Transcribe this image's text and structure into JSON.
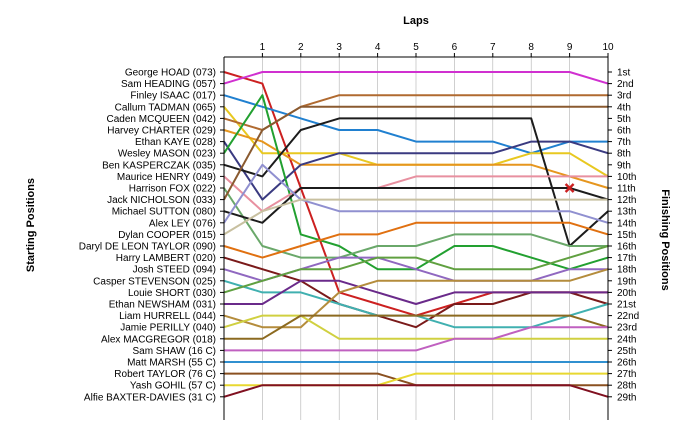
{
  "chart_data": {
    "type": "line",
    "title": "Laps",
    "ylabel_left": "Starting Positions",
    "ylabel_right": "Finishing Positions",
    "x": [
      0,
      1,
      2,
      3,
      4,
      5,
      6,
      7,
      8,
      9,
      10
    ],
    "x_ticks": [
      "1",
      "2",
      "3",
      "4",
      "5",
      "6",
      "7",
      "8",
      "9",
      "10"
    ],
    "y_reversed": true,
    "start_labels": [
      "George HOAD (073)",
      "Sam HEADING (057)",
      "Finley ISAAC (017)",
      "Callum TADMAN (065)",
      "Caden MCQUEEN (042)",
      "Harvey CHARTER (029)",
      "Ethan KAYE (028)",
      "Wesley MASON (023)",
      "Ben KASPERCZAK (035)",
      "Maurice HENRY (049)",
      "Harrison FOX (022)",
      "Jack NICHOLSON (033)",
      "Michael SUTTON (080)",
      "Alex LEY (076)",
      "Dylan COOPER (015)",
      "Daryl DE LEON TAYLOR (090)",
      "Harry LAMBERT (020)",
      "Josh STEED (094)",
      "Casper STEVENSON (025)",
      "Louie SHORT (030)",
      "Ethan NEWSHAM (031)",
      "Liam HURRELL (044)",
      "Jamie PERILLY (040)",
      "Alex MACGREGOR (018)",
      "Sam SHAW (16 C)",
      "Matt MARSH (55 C)",
      "Robert TAYLOR (76 C)",
      "Yash GOHIL (57 C)",
      "Alfie BAXTER-DAVIES (31 C)"
    ],
    "finish_labels": [
      "1st",
      "2nd",
      "3rd",
      "4th",
      "5th",
      "6th",
      "7th",
      "8th",
      "9th",
      "10th",
      "11th",
      "12th",
      "13th",
      "14th",
      "15th",
      "16th",
      "17th",
      "18th",
      "19th",
      "20th",
      "21st",
      "22nd",
      "23rd",
      "24th",
      "25th",
      "26th",
      "27th",
      "28th",
      "29th"
    ],
    "series": [
      {
        "color": "#cc2020",
        "positions": [
          1,
          2,
          11,
          20,
          21,
          22,
          21,
          20,
          20,
          20,
          20
        ]
      },
      {
        "color": "#d030d0",
        "positions": [
          2,
          1,
          1,
          1,
          1,
          1,
          1,
          1,
          1,
          1,
          2
        ]
      },
      {
        "color": "#2080d0",
        "positions": [
          3,
          4,
          5,
          6,
          6,
          7,
          7,
          7,
          8,
          7,
          7
        ]
      },
      {
        "color": "#e8c820",
        "positions": [
          4,
          8,
          8,
          8,
          9,
          9,
          9,
          9,
          8,
          8,
          10
        ]
      },
      {
        "color": "#b06a30",
        "positions": [
          5,
          6,
          4,
          3,
          3,
          3,
          3,
          3,
          3,
          3,
          3
        ]
      },
      {
        "color": "#e6961e",
        "positions": [
          6,
          7,
          9,
          9,
          9,
          9,
          9,
          9,
          9,
          10,
          11
        ]
      },
      {
        "color": "#3a3a80",
        "positions": [
          7,
          12,
          9,
          8,
          8,
          8,
          8,
          8,
          7,
          7,
          8
        ]
      },
      {
        "color": "#22a030",
        "positions": [
          8,
          3,
          15,
          16,
          18,
          18,
          16,
          16,
          17,
          18,
          17
        ]
      },
      {
        "color": "#1c1c1c",
        "positions": [
          9,
          10,
          6,
          5,
          5,
          5,
          5,
          5,
          5,
          16,
          13
        ]
      },
      {
        "color": "#e890a0",
        "positions": [
          10,
          13,
          11,
          11,
          11,
          10,
          10,
          10,
          10,
          10,
          10
        ]
      },
      {
        "color": "#6aa86a",
        "positions": [
          11,
          16,
          17,
          17,
          16,
          16,
          15,
          15,
          15,
          16,
          16
        ]
      },
      {
        "color": "#8a5a30",
        "positions": [
          12,
          6,
          4,
          4,
          4,
          4,
          4,
          4,
          4,
          4,
          4
        ]
      },
      {
        "color": "#1c1c1c",
        "positions": [
          13,
          14,
          11,
          11,
          11,
          11,
          11,
          11,
          11,
          11,
          12
        ]
      },
      {
        "color": "#9090d0",
        "positions": [
          14,
          9,
          12,
          13,
          13,
          13,
          13,
          13,
          13,
          13,
          14
        ]
      },
      {
        "color": "#c8c0a0",
        "positions": [
          15,
          13,
          12,
          12,
          12,
          12,
          12,
          12,
          12,
          12,
          12
        ]
      },
      {
        "color": "#e07010",
        "positions": [
          16,
          17,
          16,
          15,
          15,
          14,
          14,
          14,
          14,
          14,
          15
        ]
      },
      {
        "color": "#7a1a1a",
        "positions": [
          17,
          18,
          19,
          21,
          22,
          23,
          21,
          21,
          20,
          20,
          21
        ]
      },
      {
        "color": "#9068c0",
        "positions": [
          18,
          19,
          18,
          17,
          17,
          18,
          19,
          19,
          19,
          18,
          18
        ]
      },
      {
        "color": "#40b0b0",
        "positions": [
          19,
          20,
          20,
          21,
          22,
          22,
          23,
          23,
          23,
          22,
          21
        ]
      },
      {
        "color": "#60a040",
        "positions": [
          20,
          19,
          18,
          18,
          17,
          17,
          18,
          18,
          18,
          17,
          16
        ]
      },
      {
        "color": "#6a2a8a",
        "positions": [
          21,
          21,
          19,
          19,
          20,
          21,
          20,
          20,
          20,
          20,
          20
        ]
      },
      {
        "color": "#b48c3c",
        "positions": [
          22,
          23,
          23,
          20,
          19,
          19,
          19,
          19,
          19,
          19,
          18
        ]
      },
      {
        "color": "#d0d040",
        "positions": [
          23,
          22,
          22,
          24,
          24,
          24,
          24,
          24,
          24,
          24,
          24
        ]
      },
      {
        "color": "#8c6a20",
        "positions": [
          24,
          24,
          22,
          22,
          22,
          22,
          22,
          22,
          22,
          22,
          23
        ]
      },
      {
        "color": "#c060c0",
        "positions": [
          25,
          25,
          25,
          25,
          25,
          25,
          24,
          24,
          23,
          23,
          23
        ]
      },
      {
        "color": "#3090d0",
        "positions": [
          26,
          26,
          26,
          26,
          26,
          26,
          26,
          26,
          26,
          26,
          26
        ]
      },
      {
        "color": "#8a5020",
        "positions": [
          27,
          27,
          27,
          27,
          27,
          28,
          28,
          28,
          28,
          28,
          28
        ]
      },
      {
        "color": "#e8d830",
        "positions": [
          28,
          28,
          28,
          28,
          28,
          27,
          27,
          27,
          27,
          27,
          27
        ]
      },
      {
        "color": "#801020",
        "positions": [
          29,
          28,
          28,
          28,
          28,
          28,
          28,
          28,
          28,
          28,
          29
        ]
      }
    ],
    "annotations": [
      {
        "type": "x-marker",
        "lap": 9,
        "position": 11,
        "color": "#cc2020"
      }
    ],
    "grid": true,
    "legend": "none"
  }
}
